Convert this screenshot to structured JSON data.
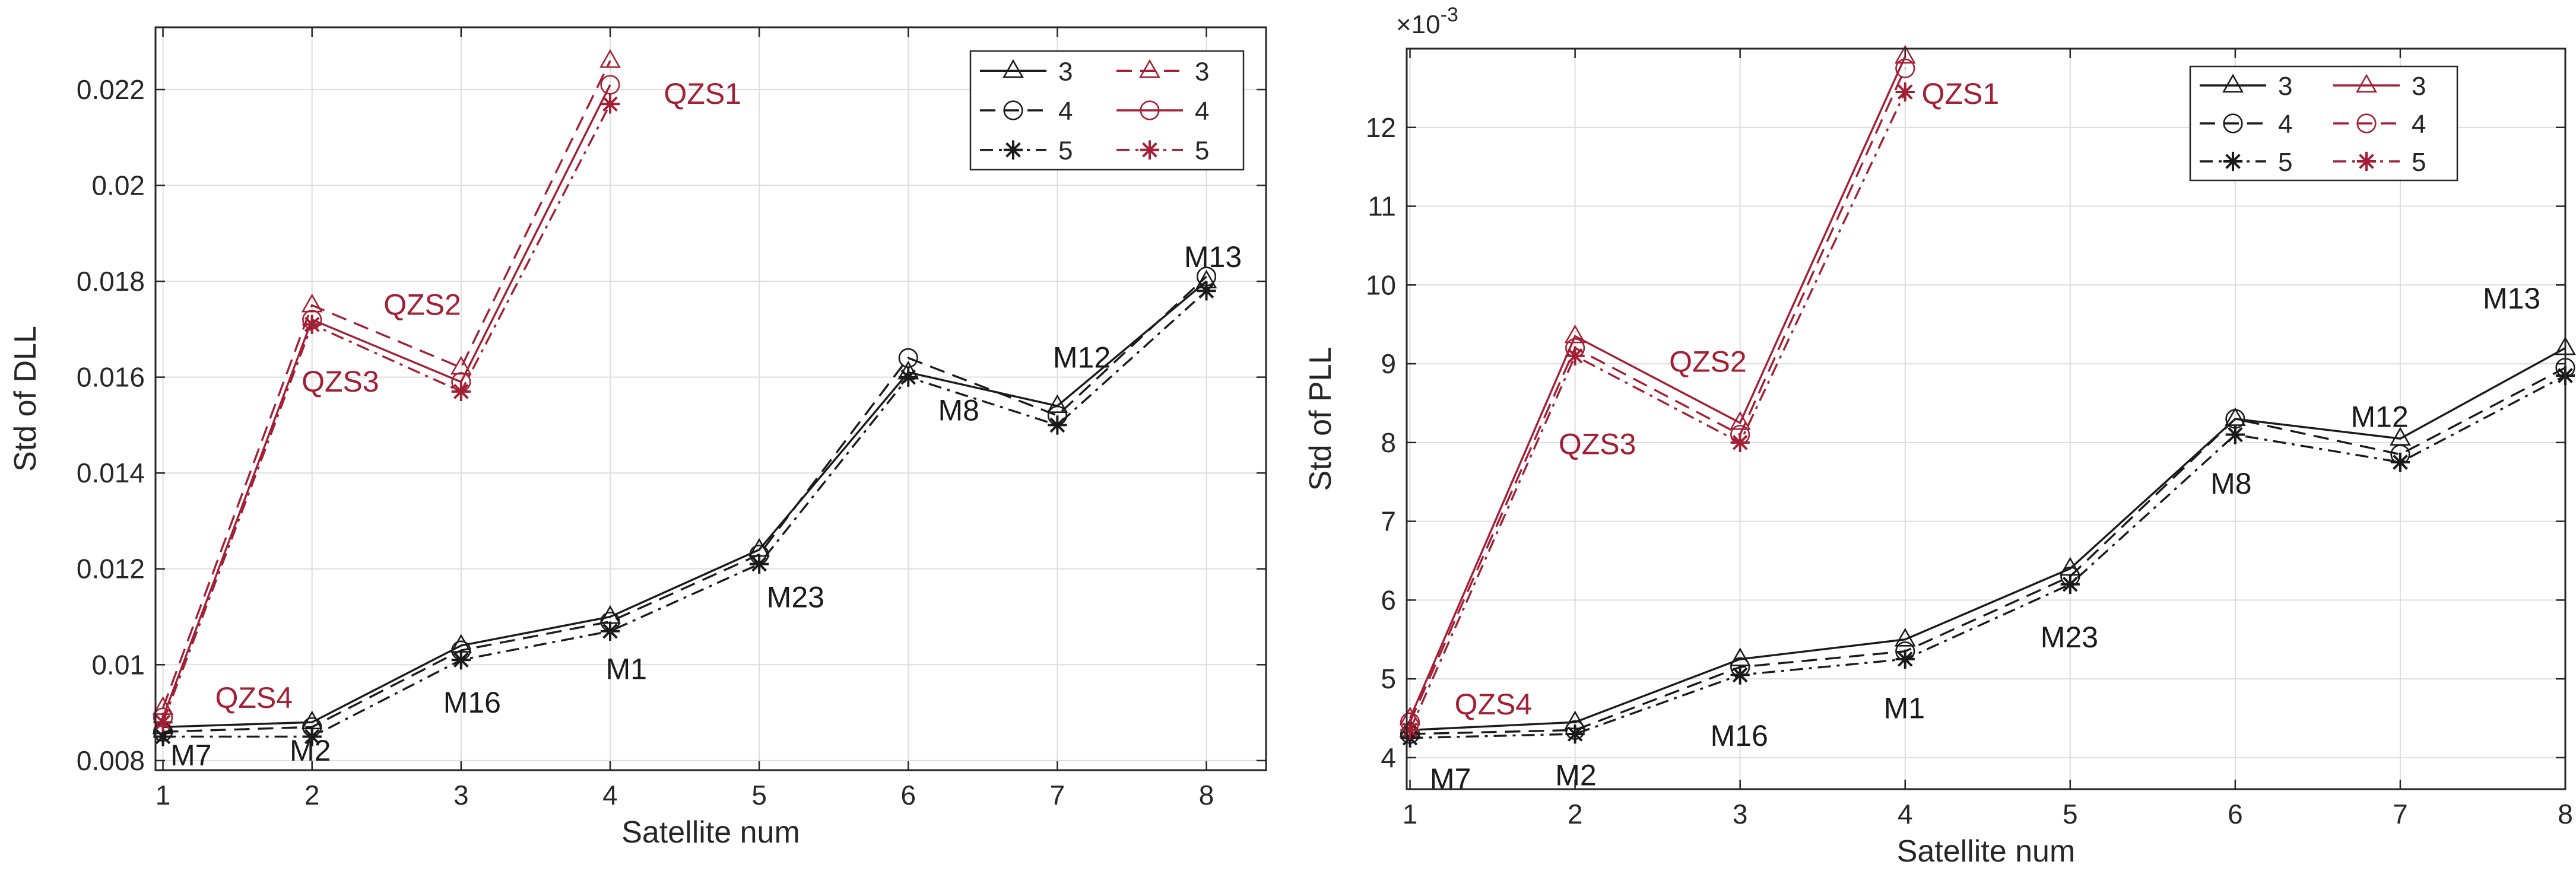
{
  "colors": {
    "black": "#1a1a1a",
    "red": "#a31f34",
    "grid": "#dddddd"
  },
  "chart_data": [
    {
      "type": "line",
      "title": "",
      "xlabel": "Satellite num",
      "ylabel": "Std of DLL",
      "xlim": [
        0.95,
        8.4
      ],
      "ylim": [
        0.0078,
        0.0233
      ],
      "xticks": [
        1,
        2,
        3,
        4,
        5,
        6,
        7,
        8
      ],
      "xtick_labels": [
        "1",
        "2",
        "3",
        "4",
        "5",
        "6",
        "7",
        "8"
      ],
      "yticks": [
        0.008,
        0.01,
        0.012,
        0.014,
        0.016,
        0.018,
        0.02,
        0.022
      ],
      "ytick_labels": [
        "0.008",
        "0.01",
        "0.012",
        "0.014",
        "0.016",
        "0.018",
        "0.02",
        "0.022"
      ],
      "exponent_label": "",
      "series": [
        {
          "name": "3",
          "color": "black",
          "dash": "solid",
          "marker": "triangle",
          "x": [
            1,
            2,
            3,
            4,
            5,
            6,
            7,
            8
          ],
          "values": [
            0.0087,
            0.0088,
            0.0104,
            0.011,
            0.0124,
            0.0161,
            0.0154,
            0.018
          ]
        },
        {
          "name": "4",
          "color": "black",
          "dash": "dash",
          "marker": "circle",
          "x": [
            1,
            2,
            3,
            4,
            5,
            6,
            7,
            8
          ],
          "values": [
            0.0086,
            0.0087,
            0.0103,
            0.0109,
            0.0123,
            0.0164,
            0.0152,
            0.0181
          ]
        },
        {
          "name": "5",
          "color": "black",
          "dash": "dashdot",
          "marker": "star",
          "x": [
            1,
            2,
            3,
            4,
            5,
            6,
            7,
            8
          ],
          "values": [
            0.0085,
            0.0085,
            0.0101,
            0.0107,
            0.0121,
            0.016,
            0.015,
            0.0178
          ]
        },
        {
          "name": "3",
          "color": "red",
          "dash": "dash",
          "marker": "triangle",
          "x": [
            1,
            2,
            3,
            4
          ],
          "values": [
            0.0091,
            0.0175,
            0.0162,
            0.0226
          ]
        },
        {
          "name": "4",
          "color": "red",
          "dash": "solid",
          "marker": "circle",
          "x": [
            1,
            2,
            3,
            4
          ],
          "values": [
            0.0089,
            0.0172,
            0.0159,
            0.0221
          ]
        },
        {
          "name": "5",
          "color": "red",
          "dash": "dashdot",
          "marker": "star",
          "x": [
            1,
            2,
            3,
            4
          ],
          "values": [
            0.0088,
            0.0171,
            0.0157,
            0.0217
          ]
        }
      ],
      "annotations": [
        {
          "text": "QZS1",
          "x": 4.36,
          "y": 0.0217,
          "color": "red"
        },
        {
          "text": "QZS2",
          "x": 2.48,
          "y": 0.0173,
          "color": "red"
        },
        {
          "text": "QZS3",
          "x": 1.93,
          "y": 0.0157,
          "color": "red"
        },
        {
          "text": "QZS4",
          "x": 1.35,
          "y": 0.0091,
          "color": "red"
        },
        {
          "text": "M7",
          "x": 1.05,
          "y": 0.0079,
          "color": "black"
        },
        {
          "text": "M2",
          "x": 1.85,
          "y": 0.008,
          "color": "black"
        },
        {
          "text": "M16",
          "x": 2.88,
          "y": 0.009,
          "color": "black"
        },
        {
          "text": "M1",
          "x": 3.97,
          "y": 0.0097,
          "color": "black"
        },
        {
          "text": "M23",
          "x": 5.05,
          "y": 0.0112,
          "color": "black"
        },
        {
          "text": "M8",
          "x": 6.2,
          "y": 0.0151,
          "color": "black"
        },
        {
          "text": "M12",
          "x": 6.97,
          "y": 0.0162,
          "color": "black"
        },
        {
          "text": "M13",
          "x": 7.85,
          "y": 0.0183,
          "color": "black"
        }
      ],
      "legend": {
        "placement": "top-right",
        "entries": [
          {
            "label": "3",
            "color": "black",
            "dash": "solid",
            "marker": "triangle"
          },
          {
            "label": "3",
            "color": "red",
            "dash": "dash",
            "marker": "triangle"
          },
          {
            "label": "4",
            "color": "black",
            "dash": "dash",
            "marker": "circle"
          },
          {
            "label": "4",
            "color": "red",
            "dash": "solid",
            "marker": "circle"
          },
          {
            "label": "5",
            "color": "black",
            "dash": "dashdot",
            "marker": "star"
          },
          {
            "label": "5",
            "color": "red",
            "dash": "dashdot",
            "marker": "star"
          }
        ]
      }
    },
    {
      "type": "line",
      "title": "",
      "xlabel": "Satellite num",
      "ylabel": "Std of PLL",
      "xlim": [
        0.98,
        8.0
      ],
      "ylim": [
        3.6,
        13.0
      ],
      "xticks": [
        1,
        2,
        3,
        4,
        5,
        6,
        7,
        8
      ],
      "xtick_labels": [
        "1",
        "2",
        "3",
        "4",
        "5",
        "6",
        "7",
        "8"
      ],
      "yticks": [
        4,
        5,
        6,
        7,
        8,
        9,
        10,
        11,
        12
      ],
      "ytick_labels": [
        "4",
        "5",
        "6",
        "7",
        "8",
        "9",
        "10",
        "11",
        "12"
      ],
      "exponent_label": "×10",
      "exponent_power": "-3",
      "series": [
        {
          "name": "3",
          "color": "black",
          "dash": "solid",
          "marker": "triangle",
          "x": [
            1,
            2,
            3,
            4,
            5,
            6,
            7,
            8
          ],
          "values": [
            4.35,
            4.45,
            5.25,
            5.5,
            6.4,
            8.3,
            8.05,
            9.2
          ]
        },
        {
          "name": "4",
          "color": "black",
          "dash": "dash",
          "marker": "circle",
          "x": [
            1,
            2,
            3,
            4,
            5,
            6,
            7,
            8
          ],
          "values": [
            4.3,
            4.35,
            5.15,
            5.35,
            6.3,
            8.3,
            7.85,
            8.95
          ]
        },
        {
          "name": "5",
          "color": "black",
          "dash": "dashdot",
          "marker": "star",
          "x": [
            1,
            2,
            3,
            4,
            5,
            6,
            7,
            8
          ],
          "values": [
            4.25,
            4.3,
            5.05,
            5.25,
            6.2,
            8.1,
            7.75,
            8.85
          ]
        },
        {
          "name": "3",
          "color": "red",
          "dash": "solid",
          "marker": "triangle",
          "x": [
            1,
            2,
            3,
            4
          ],
          "values": [
            4.5,
            9.35,
            8.25,
            12.9
          ]
        },
        {
          "name": "4",
          "color": "red",
          "dash": "dash",
          "marker": "circle",
          "x": [
            1,
            2,
            3,
            4
          ],
          "values": [
            4.45,
            9.2,
            8.1,
            12.75
          ]
        },
        {
          "name": "5",
          "color": "red",
          "dash": "dashdot",
          "marker": "star",
          "x": [
            1,
            2,
            3,
            4
          ],
          "values": [
            4.35,
            9.1,
            8.0,
            12.45
          ]
        }
      ],
      "annotations": [
        {
          "text": "QZS1",
          "x": 4.1,
          "y": 12.3,
          "color": "red"
        },
        {
          "text": "QZS2",
          "x": 2.57,
          "y": 8.9,
          "color": "red"
        },
        {
          "text": "QZS3",
          "x": 1.9,
          "y": 7.85,
          "color": "red"
        },
        {
          "text": "QZS4",
          "x": 1.27,
          "y": 4.55,
          "color": "red"
        },
        {
          "text": "M7",
          "x": 1.12,
          "y": 3.6,
          "color": "black"
        },
        {
          "text": "M2",
          "x": 1.88,
          "y": 3.65,
          "color": "black"
        },
        {
          "text": "M16",
          "x": 2.82,
          "y": 4.15,
          "color": "black"
        },
        {
          "text": "M1",
          "x": 3.87,
          "y": 4.5,
          "color": "black"
        },
        {
          "text": "M23",
          "x": 4.82,
          "y": 5.4,
          "color": "black"
        },
        {
          "text": "M8",
          "x": 5.85,
          "y": 7.35,
          "color": "black"
        },
        {
          "text": "M12",
          "x": 6.7,
          "y": 8.2,
          "color": "black"
        },
        {
          "text": "M13",
          "x": 7.5,
          "y": 9.7,
          "color": "black"
        }
      ],
      "legend": {
        "placement": "top-right",
        "entries": [
          {
            "label": "3",
            "color": "black",
            "dash": "solid",
            "marker": "triangle"
          },
          {
            "label": "3",
            "color": "red",
            "dash": "solid",
            "marker": "triangle"
          },
          {
            "label": "4",
            "color": "black",
            "dash": "dash",
            "marker": "circle"
          },
          {
            "label": "4",
            "color": "red",
            "dash": "dash",
            "marker": "circle"
          },
          {
            "label": "5",
            "color": "black",
            "dash": "dashdot",
            "marker": "star"
          },
          {
            "label": "5",
            "color": "red",
            "dash": "dashdot",
            "marker": "star"
          }
        ]
      }
    }
  ]
}
